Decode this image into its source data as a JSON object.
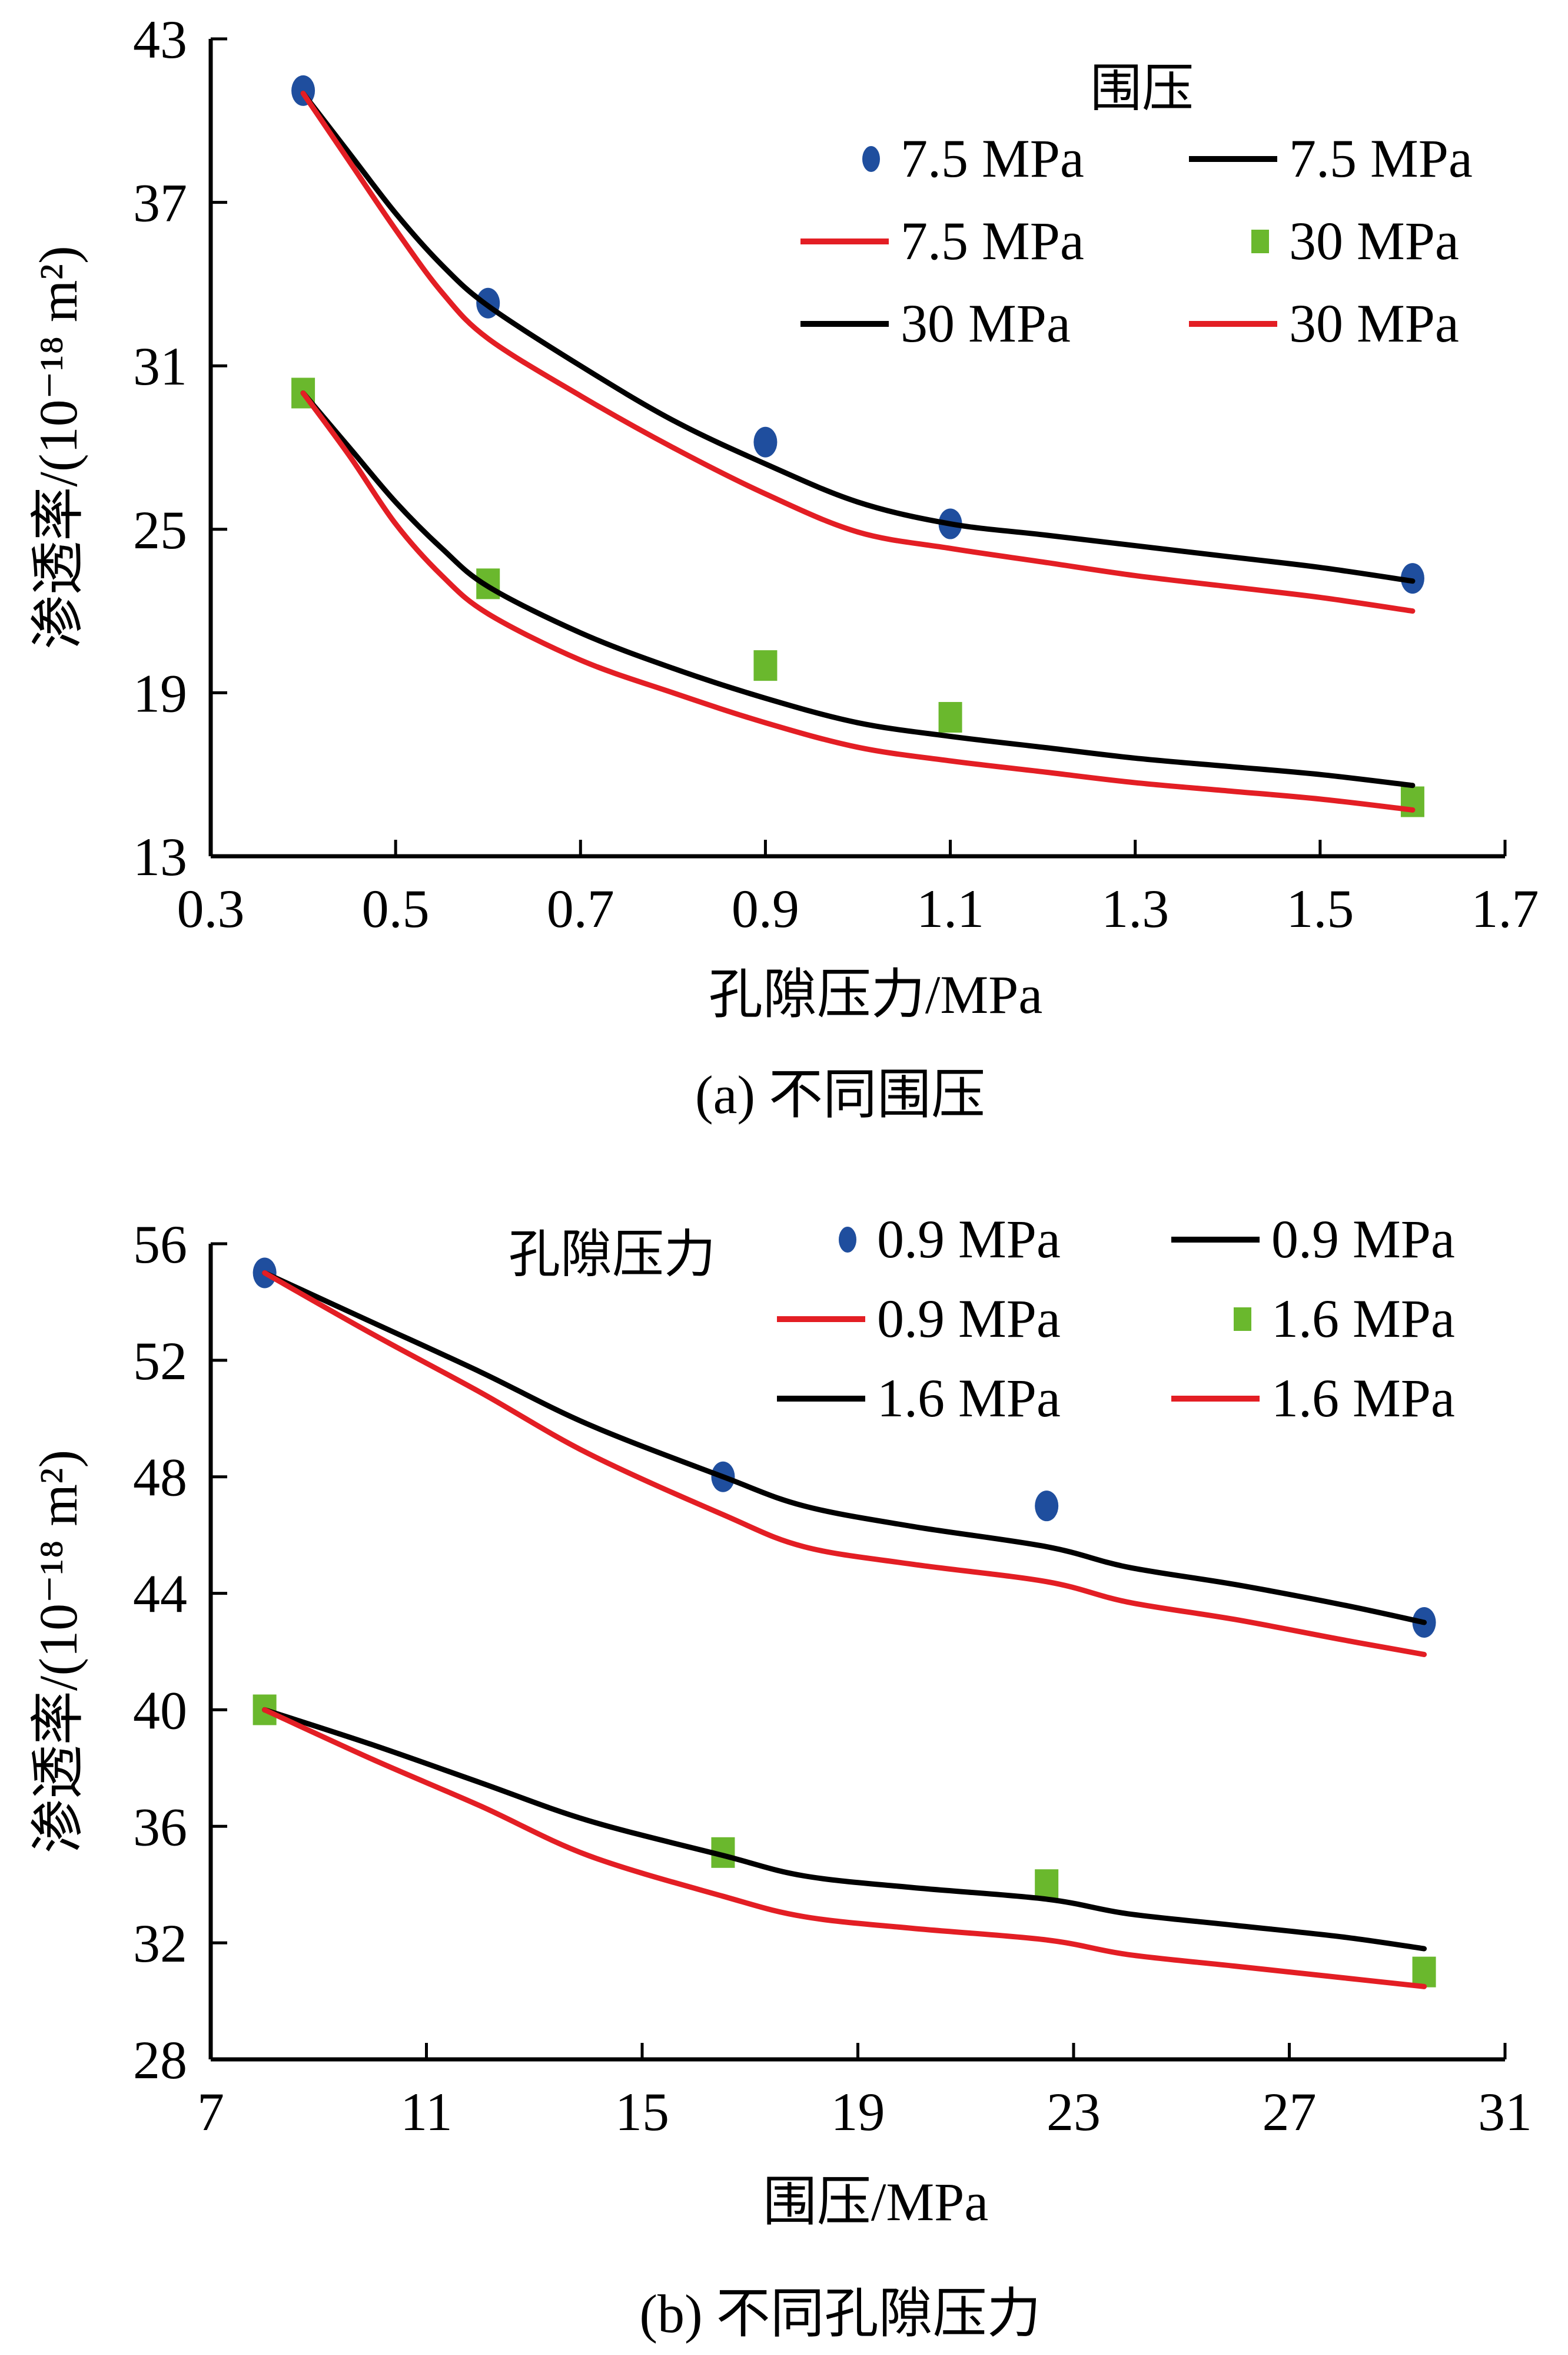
{
  "colors": {
    "circle_marker": "#1f4e9e",
    "square_marker": "#6ab82d",
    "black_line": "#000000",
    "red_line": "#e31e24"
  },
  "chart_data": [
    {
      "type": "scatter",
      "panel": "a",
      "caption": "(a)  不同围压",
      "xlabel": "孔隙压力/MPa",
      "ylabel": "渗透率/(10⁻¹⁸ m²)",
      "xlim": [
        0.3,
        1.7
      ],
      "ylim": [
        13,
        43
      ],
      "xticks": [
        "0.3",
        "0.5",
        "0.7",
        "0.9",
        "1.1",
        "1.3",
        "1.5",
        "1.7"
      ],
      "yticks": [
        "13",
        "19",
        "25",
        "31",
        "37",
        "43"
      ],
      "grid": false,
      "legend": {
        "title": "围压",
        "placement": "top-right",
        "entries": [
          {
            "label": "7.5 MPa",
            "kind": "circle",
            "color_key": "circle_marker"
          },
          {
            "label": "7.5 MPa",
            "kind": "line",
            "color_key": "black_line"
          },
          {
            "label": "7.5 MPa",
            "kind": "line",
            "color_key": "red_line"
          },
          {
            "label": "30 MPa",
            "kind": "square",
            "color_key": "square_marker"
          },
          {
            "label": "30 MPa",
            "kind": "line",
            "color_key": "black_line"
          },
          {
            "label": "30 MPa",
            "kind": "line",
            "color_key": "red_line"
          }
        ]
      },
      "series": [
        {
          "name": "7.5 MPa",
          "kind": "circle",
          "color_key": "circle_marker",
          "x": [
            0.4,
            0.6,
            0.9,
            1.1,
            1.6
          ],
          "y": [
            41.1,
            33.3,
            28.2,
            25.2,
            23.2
          ]
        },
        {
          "name": "7.5 MPa",
          "kind": "line",
          "color_key": "black_line",
          "x": [
            0.4,
            0.45,
            0.5,
            0.55,
            0.6,
            0.7,
            0.8,
            0.9,
            1.0,
            1.1,
            1.2,
            1.3,
            1.4,
            1.5,
            1.6
          ],
          "y": [
            41.0,
            38.8,
            36.6,
            34.7,
            33.2,
            31.0,
            29.0,
            27.4,
            26.0,
            25.2,
            24.8,
            24.4,
            24.0,
            23.6,
            23.1
          ]
        },
        {
          "name": "7.5 MPa",
          "kind": "line",
          "color_key": "red_line",
          "x": [
            0.4,
            0.45,
            0.5,
            0.55,
            0.6,
            0.7,
            0.8,
            0.9,
            1.0,
            1.1,
            1.2,
            1.3,
            1.4,
            1.5,
            1.6
          ],
          "y": [
            41.0,
            38.5,
            36.0,
            33.7,
            32.0,
            29.9,
            28.0,
            26.3,
            24.9,
            24.3,
            23.8,
            23.3,
            22.9,
            22.5,
            22.0
          ]
        },
        {
          "name": "30 MPa",
          "kind": "square",
          "color_key": "square_marker",
          "x": [
            0.4,
            0.6,
            0.9,
            1.1,
            1.6
          ],
          "y": [
            30.0,
            23.0,
            20.0,
            18.1,
            15.0
          ]
        },
        {
          "name": "30 MPa",
          "kind": "line",
          "color_key": "black_line",
          "x": [
            0.4,
            0.45,
            0.5,
            0.55,
            0.6,
            0.7,
            0.8,
            0.9,
            1.0,
            1.1,
            1.2,
            1.3,
            1.4,
            1.5,
            1.6
          ],
          "y": [
            30.0,
            28.0,
            26.0,
            24.3,
            22.9,
            21.2,
            19.9,
            18.8,
            17.9,
            17.4,
            17.0,
            16.6,
            16.3,
            16.0,
            15.6
          ]
        },
        {
          "name": "30 MPa",
          "kind": "line",
          "color_key": "red_line",
          "x": [
            0.4,
            0.45,
            0.5,
            0.55,
            0.6,
            0.7,
            0.8,
            0.9,
            1.0,
            1.1,
            1.2,
            1.3,
            1.4,
            1.5,
            1.6
          ],
          "y": [
            30.0,
            27.7,
            25.2,
            23.3,
            21.9,
            20.2,
            19.0,
            17.9,
            17.0,
            16.5,
            16.1,
            15.7,
            15.4,
            15.1,
            14.7
          ]
        }
      ]
    },
    {
      "type": "scatter",
      "panel": "b",
      "caption": "(b)  不同孔隙压力",
      "xlabel": "围压/MPa",
      "ylabel": "渗透率/(10⁻¹⁸ m²)",
      "xlim": [
        7,
        31
      ],
      "ylim": [
        28,
        56
      ],
      "xticks": [
        "7",
        "11",
        "15",
        "19",
        "23",
        "27",
        "31"
      ],
      "yticks": [
        "28",
        "32",
        "36",
        "40",
        "44",
        "48",
        "52",
        "56"
      ],
      "grid": false,
      "legend": {
        "title": "孔隙压力",
        "placement": "top-right",
        "entries": [
          {
            "label": "0.9 MPa",
            "kind": "circle",
            "color_key": "circle_marker"
          },
          {
            "label": "0.9 MPa",
            "kind": "line",
            "color_key": "black_line"
          },
          {
            "label": "0.9 MPa",
            "kind": "line",
            "color_key": "red_line"
          },
          {
            "label": "1.6 MPa",
            "kind": "square",
            "color_key": "square_marker"
          },
          {
            "label": "1.6 MPa",
            "kind": "line",
            "color_key": "black_line"
          },
          {
            "label": "1.6 MPa",
            "kind": "line",
            "color_key": "red_line"
          }
        ]
      },
      "series": [
        {
          "name": "0.9 MPa",
          "kind": "circle",
          "color_key": "circle_marker",
          "x": [
            8.0,
            16.5,
            22.5,
            29.5
          ],
          "y": [
            55.0,
            48.0,
            47.0,
            43.0
          ]
        },
        {
          "name": "0.9 MPa",
          "kind": "line",
          "color_key": "black_line",
          "x": [
            8.0,
            10,
            12,
            14,
            16.5,
            18,
            20,
            22.5,
            24,
            26,
            28,
            29.5
          ],
          "y": [
            55.0,
            53.3,
            51.6,
            49.8,
            48.0,
            47.0,
            46.3,
            45.6,
            44.9,
            44.3,
            43.6,
            43.0
          ]
        },
        {
          "name": "0.9 MPa",
          "kind": "line",
          "color_key": "red_line",
          "x": [
            8.0,
            10,
            12,
            14,
            16.5,
            18,
            20,
            22.5,
            24,
            26,
            28,
            29.5
          ],
          "y": [
            55.0,
            52.9,
            50.9,
            48.8,
            46.7,
            45.6,
            45.0,
            44.4,
            43.7,
            43.1,
            42.4,
            41.9
          ]
        },
        {
          "name": "1.6 MPa",
          "kind": "square",
          "color_key": "square_marker",
          "x": [
            8.0,
            16.5,
            22.5,
            29.5
          ],
          "y": [
            40.0,
            35.1,
            34.0,
            31.0
          ]
        },
        {
          "name": "1.6 MPa",
          "kind": "line",
          "color_key": "black_line",
          "x": [
            8.0,
            10,
            12,
            14,
            16.5,
            18,
            20,
            22.5,
            24,
            26,
            28,
            29.5
          ],
          "y": [
            40.0,
            38.8,
            37.5,
            36.2,
            35.0,
            34.3,
            33.9,
            33.5,
            33.0,
            32.6,
            32.2,
            31.8
          ]
        },
        {
          "name": "1.6 MPa",
          "kind": "line",
          "color_key": "red_line",
          "x": [
            8.0,
            10,
            12,
            14,
            16.5,
            18,
            20,
            22.5,
            24,
            26,
            28,
            29.5
          ],
          "y": [
            40.0,
            38.3,
            36.7,
            35.0,
            33.6,
            32.9,
            32.5,
            32.1,
            31.6,
            31.2,
            30.8,
            30.5
          ]
        }
      ]
    }
  ]
}
